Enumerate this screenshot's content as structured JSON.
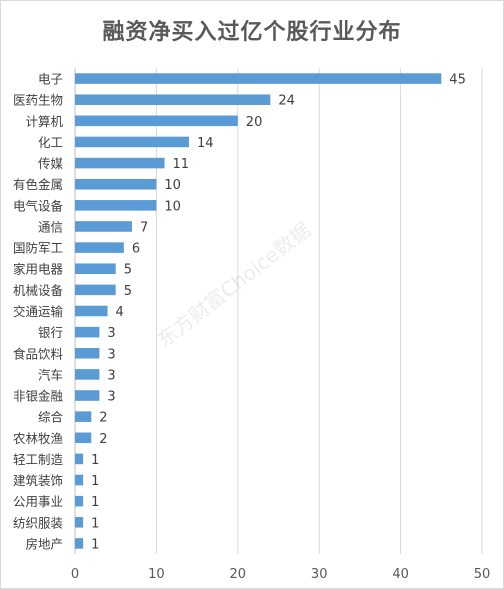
{
  "chart_data": {
    "type": "bar",
    "orientation": "horizontal",
    "title": "融资净买入过亿个股行业分布",
    "categories": [
      "电子",
      "医药生物",
      "计算机",
      "化工",
      "传媒",
      "有色金属",
      "电气设备",
      "通信",
      "国防军工",
      "家用电器",
      "机械设备",
      "交通运输",
      "银行",
      "食品饮料",
      "汽车",
      "非银金融",
      "综合",
      "农林牧渔",
      "轻工制造",
      "建筑装饰",
      "公用事业",
      "纺织服装",
      "房地产"
    ],
    "values": [
      45,
      24,
      20,
      14,
      11,
      10,
      10,
      7,
      6,
      5,
      5,
      4,
      3,
      3,
      3,
      3,
      2,
      2,
      1,
      1,
      1,
      1,
      1
    ],
    "xlim": [
      0,
      50
    ],
    "xticks": [
      "0",
      "10",
      "20",
      "30",
      "40",
      "50"
    ],
    "grid": true,
    "legend": "none",
    "bar_color": "#5b9bd5"
  },
  "watermark": "东方财富Choice数据"
}
